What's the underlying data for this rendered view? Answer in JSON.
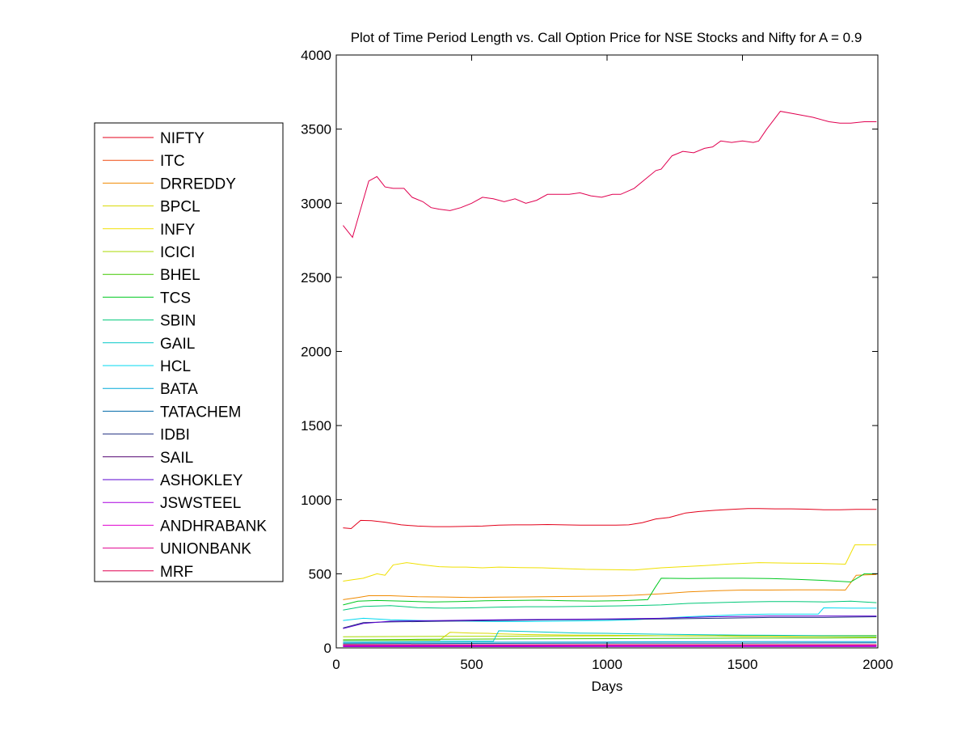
{
  "chart_data": {
    "type": "line",
    "title": "Plot of Time Period Length vs. Call Option Price for NSE Stocks and Nifty for A = 0.9",
    "xlabel": "Days",
    "ylabel": "",
    "xlim": [
      0,
      2000
    ],
    "ylim": [
      0,
      4000
    ],
    "xticks": [
      0,
      500,
      1000,
      1500,
      2000
    ],
    "yticks": [
      0,
      500,
      1000,
      1500,
      2000,
      2500,
      3000,
      3500,
      4000
    ],
    "grid": false,
    "legend_position": "left",
    "series": [
      {
        "name": "NIFTY",
        "color": "#e3001b",
        "x": [
          25,
          55,
          90,
          130,
          180,
          240,
          300,
          360,
          420,
          480,
          540,
          600,
          660,
          720,
          780,
          840,
          900,
          960,
          1020,
          1080,
          1130,
          1180,
          1230,
          1290,
          1340,
          1400,
          1460,
          1520,
          1560,
          1620,
          1680,
          1740,
          1800,
          1860,
          1920,
          1995
        ],
        "y": [
          810,
          805,
          860,
          858,
          848,
          830,
          822,
          818,
          818,
          820,
          822,
          828,
          830,
          830,
          832,
          830,
          828,
          828,
          828,
          830,
          845,
          870,
          880,
          910,
          920,
          928,
          935,
          940,
          940,
          938,
          938,
          936,
          932,
          932,
          935,
          935
        ]
      },
      {
        "name": "ITC",
        "color": "#f04a10",
        "x": [
          25,
          500,
          1000,
          1500,
          1995
        ],
        "y": [
          22,
          20,
          22,
          22,
          22
        ]
      },
      {
        "name": "DRREDDY",
        "color": "#f08a00",
        "x": [
          25,
          80,
          120,
          200,
          300,
          400,
          500,
          600,
          700,
          800,
          900,
          1000,
          1100,
          1200,
          1300,
          1400,
          1500,
          1600,
          1700,
          1800,
          1880,
          1920,
          1995
        ],
        "y": [
          325,
          340,
          352,
          352,
          345,
          343,
          340,
          342,
          344,
          346,
          348,
          350,
          355,
          365,
          378,
          385,
          390,
          390,
          392,
          392,
          390,
          490,
          495
        ]
      },
      {
        "name": "BPCL",
        "color": "#d8d800",
        "x": [
          25,
          300,
          380,
          420,
          500,
          560,
          600,
          700,
          800,
          900,
          1000,
          1100,
          1200,
          1300,
          1400,
          1500,
          1600,
          1700,
          1800,
          1900,
          1995
        ],
        "y": [
          48,
          50,
          50,
          105,
          100,
          98,
          95,
          90,
          88,
          86,
          85,
          84,
          82,
          80,
          80,
          78,
          78,
          76,
          76,
          75,
          75
        ]
      },
      {
        "name": "INFY",
        "color": "#f0e000",
        "x": [
          25,
          60,
          100,
          150,
          180,
          210,
          260,
          320,
          380,
          430,
          480,
          540,
          600,
          680,
          760,
          840,
          920,
          1000,
          1100,
          1200,
          1280,
          1360,
          1440,
          1560,
          1680,
          1780,
          1880,
          1915,
          1995
        ],
        "y": [
          450,
          460,
          470,
          500,
          490,
          560,
          575,
          560,
          548,
          545,
          545,
          540,
          545,
          542,
          540,
          535,
          530,
          528,
          525,
          540,
          548,
          555,
          565,
          575,
          572,
          570,
          565,
          695,
          695
        ]
      },
      {
        "name": "ICICI",
        "color": "#a8d800",
        "x": [
          25,
          400,
          800,
          1200,
          1600,
          1995
        ],
        "y": [
          75,
          78,
          80,
          82,
          82,
          84
        ]
      },
      {
        "name": "BHEL",
        "color": "#40c800",
        "x": [
          25,
          300,
          600,
          900,
          1200,
          1500,
          1800,
          1995
        ],
        "y": [
          55,
          58,
          60,
          62,
          64,
          66,
          66,
          68
        ]
      },
      {
        "name": "TCS",
        "color": "#00c820",
        "x": [
          25,
          80,
          150,
          250,
          350,
          450,
          550,
          650,
          750,
          850,
          950,
          1050,
          1150,
          1175,
          1200,
          1300,
          1400,
          1500,
          1600,
          1700,
          1800,
          1900,
          1950,
          1995
        ],
        "y": [
          290,
          315,
          320,
          315,
          310,
          312,
          318,
          320,
          322,
          318,
          316,
          318,
          325,
          400,
          470,
          468,
          470,
          470,
          468,
          462,
          455,
          445,
          500,
          500
        ]
      },
      {
        "name": "SBIN",
        "color": "#00c878",
        "x": [
          25,
          100,
          200,
          300,
          400,
          500,
          600,
          700,
          800,
          900,
          1000,
          1100,
          1200,
          1300,
          1400,
          1500,
          1600,
          1700,
          1800,
          1900,
          1995
        ],
        "y": [
          255,
          280,
          285,
          272,
          268,
          270,
          275,
          278,
          278,
          280,
          282,
          285,
          290,
          300,
          305,
          310,
          312,
          312,
          310,
          315,
          305
        ]
      },
      {
        "name": "GAIL",
        "color": "#00c8c8",
        "x": [
          25,
          580,
          600,
          700,
          800,
          900,
          1000,
          1100,
          1200,
          1300,
          1400,
          1500,
          1600,
          1700,
          1800,
          1995
        ],
        "y": [
          45,
          45,
          115,
          110,
          105,
          100,
          98,
          95,
          92,
          90,
          88,
          86,
          85,
          84,
          82,
          80
        ]
      },
      {
        "name": "HCL",
        "color": "#00d8f0",
        "x": [
          25,
          100,
          200,
          300,
          400,
          500,
          600,
          700,
          800,
          900,
          1000,
          1100,
          1200,
          1300,
          1400,
          1500,
          1600,
          1700,
          1780,
          1800,
          1900,
          1995
        ],
        "y": [
          185,
          200,
          190,
          185,
          182,
          180,
          178,
          178,
          180,
          182,
          185,
          190,
          200,
          210,
          218,
          225,
          228,
          228,
          228,
          270,
          268,
          268
        ]
      },
      {
        "name": "BATA",
        "color": "#00a8d8",
        "x": [
          25,
          500,
          1000,
          1500,
          1995
        ],
        "y": [
          35,
          38,
          40,
          42,
          42
        ]
      },
      {
        "name": "TATACHEM",
        "color": "#0068a8",
        "x": [
          25,
          500,
          1000,
          1500,
          1995
        ],
        "y": [
          28,
          30,
          32,
          32,
          34
        ]
      },
      {
        "name": "IDBI",
        "color": "#203080",
        "x": [
          25,
          100,
          200,
          400,
          600,
          800,
          1000,
          1200,
          1400,
          1600,
          1800,
          1995
        ],
        "y": [
          135,
          170,
          175,
          180,
          185,
          190,
          192,
          195,
          200,
          205,
          205,
          210
        ]
      },
      {
        "name": "SAIL",
        "color": "#500070",
        "x": [
          25,
          500,
          1000,
          1500,
          1995
        ],
        "y": [
          12,
          12,
          13,
          13,
          13
        ]
      },
      {
        "name": "ASHOKLEY",
        "color": "#5a00d0",
        "x": [
          25,
          100,
          200,
          400,
          600,
          800,
          1000,
          1200,
          1400,
          1600,
          1800,
          1995
        ],
        "y": [
          130,
          165,
          180,
          185,
          190,
          192,
          195,
          200,
          210,
          215,
          215,
          215
        ]
      },
      {
        "name": "JSWSTEEL",
        "color": "#a800e0",
        "x": [
          25,
          500,
          1000,
          1500,
          1995
        ],
        "y": [
          8,
          8,
          9,
          9,
          9
        ]
      },
      {
        "name": "ANDHRABANK",
        "color": "#e000d0",
        "x": [
          25,
          500,
          1000,
          1500,
          1995
        ],
        "y": [
          15,
          15,
          15,
          15,
          15
        ]
      },
      {
        "name": "UNIONBANK",
        "color": "#e00090",
        "x": [
          25,
          500,
          1000,
          1500,
          1995
        ],
        "y": [
          20,
          20,
          20,
          20,
          20
        ]
      },
      {
        "name": "MRF",
        "color": "#e00050",
        "x": [
          25,
          60,
          90,
          120,
          150,
          180,
          210,
          250,
          280,
          320,
          350,
          380,
          420,
          460,
          500,
          540,
          580,
          620,
          660,
          700,
          740,
          780,
          820,
          860,
          900,
          940,
          980,
          1020,
          1050,
          1100,
          1140,
          1180,
          1200,
          1240,
          1280,
          1320,
          1360,
          1390,
          1420,
          1460,
          1500,
          1540,
          1560,
          1590,
          1640,
          1700,
          1760,
          1820,
          1860,
          1900,
          1950,
          1995
        ],
        "y": [
          2850,
          2770,
          2960,
          3150,
          3180,
          3110,
          3100,
          3100,
          3040,
          3010,
          2970,
          2960,
          2950,
          2970,
          3000,
          3040,
          3030,
          3010,
          3030,
          3000,
          3020,
          3060,
          3060,
          3060,
          3070,
          3050,
          3040,
          3060,
          3060,
          3100,
          3160,
          3220,
          3230,
          3320,
          3350,
          3340,
          3370,
          3380,
          3420,
          3410,
          3420,
          3410,
          3420,
          3500,
          3620,
          3600,
          3580,
          3550,
          3540,
          3540,
          3550,
          3550
        ]
      }
    ]
  }
}
